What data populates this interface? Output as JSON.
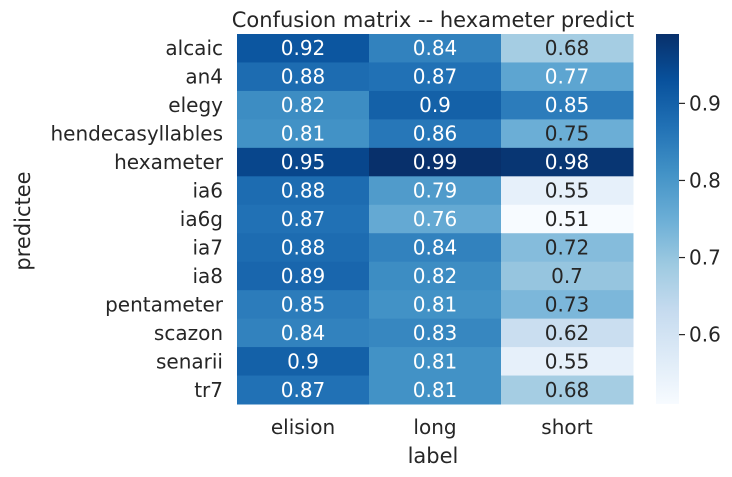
{
  "chart_data": {
    "type": "heatmap",
    "title": "Confusion matrix -- hexameter predict",
    "xlabel": "label",
    "ylabel": "predictee",
    "columns": [
      "elision",
      "long",
      "short"
    ],
    "rows": [
      "alcaic",
      "an4",
      "elegy",
      "hendecasyllables",
      "hexameter",
      "ia6",
      "ia6g",
      "ia7",
      "ia8",
      "pentameter",
      "scazon",
      "senarii",
      "tr7"
    ],
    "values": [
      [
        0.92,
        0.84,
        0.68
      ],
      [
        0.88,
        0.87,
        0.77
      ],
      [
        0.82,
        0.9,
        0.85
      ],
      [
        0.81,
        0.86,
        0.75
      ],
      [
        0.95,
        0.99,
        0.98
      ],
      [
        0.88,
        0.79,
        0.55
      ],
      [
        0.87,
        0.76,
        0.51
      ],
      [
        0.88,
        0.84,
        0.72
      ],
      [
        0.89,
        0.82,
        0.7
      ],
      [
        0.85,
        0.81,
        0.73
      ],
      [
        0.84,
        0.83,
        0.62
      ],
      [
        0.9,
        0.81,
        0.55
      ],
      [
        0.87,
        0.81,
        0.68
      ]
    ],
    "colormap": "Blues",
    "colorbar": {
      "min": 0.51,
      "max": 0.99,
      "ticks": [
        "0.6",
        "0.7",
        "0.8",
        "0.9"
      ]
    },
    "annotate": true,
    "grid": false
  }
}
